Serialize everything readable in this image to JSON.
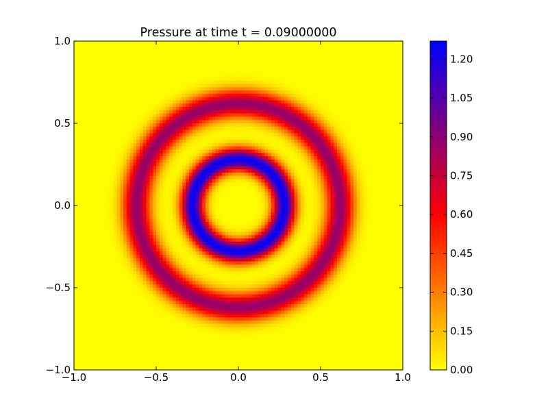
{
  "chart_data": {
    "type": "heatmap",
    "title": "Pressure at time t =      0.09000000",
    "xlabel": "",
    "ylabel": "",
    "xlim": [
      -1.0,
      1.0
    ],
    "ylim": [
      -1.0,
      1.0
    ],
    "xticks": [
      -1.0,
      -0.5,
      0.0,
      0.5,
      1.0
    ],
    "yticks": [
      -1.0,
      -0.5,
      0.0,
      0.5,
      1.0
    ],
    "xtick_labels": [
      "−1.0",
      "−0.5",
      "0.0",
      "0.5",
      "1.0"
    ],
    "ytick_labels": [
      "−1.0",
      "−0.5",
      "0.0",
      "0.5",
      "1.0"
    ],
    "grid_resolution": 100,
    "field": {
      "description_type": "radial rings",
      "background": 0.0,
      "rings": [
        {
          "radius": 0.28,
          "amplitude": 1.25,
          "width": 0.07
        },
        {
          "radius": 0.62,
          "amplitude": 0.88,
          "width": 0.085
        }
      ]
    },
    "colorbar": {
      "min": 0.0,
      "max": 1.27,
      "ticks": [
        0.0,
        0.15,
        0.3,
        0.45,
        0.6,
        0.75,
        0.9,
        1.05,
        1.2
      ],
      "tick_labels": [
        "0.00",
        "0.15",
        "0.30",
        "0.45",
        "0.60",
        "0.75",
        "0.90",
        "1.05",
        "1.20"
      ],
      "colormap_stops": [
        {
          "v": 0.0,
          "color": "#ffff00"
        },
        {
          "v": 0.6,
          "color": "#ff0000"
        },
        {
          "v": 1.27,
          "color": "#0000ff"
        }
      ]
    }
  }
}
